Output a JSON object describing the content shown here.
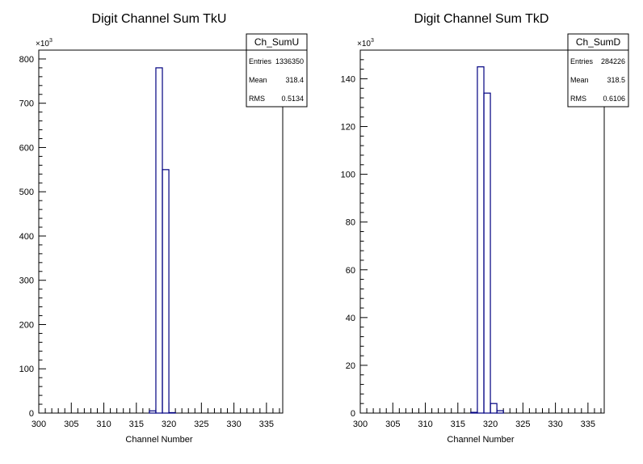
{
  "chart_data": [
    {
      "type": "histogram",
      "title": "Digit Channel Sum TkU",
      "xlabel": "Channel Number",
      "ylabel": "",
      "y_multiplier_label": "×10",
      "y_multiplier_exp": "3",
      "xlim": [
        300,
        337.5
      ],
      "ylim": [
        0,
        820
      ],
      "x_ticks": [
        300,
        305,
        310,
        315,
        320,
        325,
        330,
        335
      ],
      "y_ticks": [
        0,
        100,
        200,
        300,
        400,
        500,
        600,
        700,
        800
      ],
      "bin_width": 1,
      "bins": [
        {
          "x0": 317,
          "x1": 318,
          "y": 5
        },
        {
          "x0": 318,
          "x1": 319,
          "y": 780
        },
        {
          "x0": 319,
          "x1": 320,
          "y": 550
        },
        {
          "x0": 320,
          "x1": 321,
          "y": 1
        }
      ],
      "stats": {
        "name": "Ch_SumU",
        "rows": [
          {
            "label": "Entries",
            "value": "1336350"
          },
          {
            "label": "Mean",
            "value": "318.4"
          },
          {
            "label": "RMS",
            "value": "0.5134"
          }
        ]
      },
      "line_color": "#000080"
    },
    {
      "type": "histogram",
      "title": "Digit Channel Sum TkD",
      "xlabel": "Channel Number",
      "ylabel": "",
      "y_multiplier_label": "×10",
      "y_multiplier_exp": "3",
      "xlim": [
        300,
        337.5
      ],
      "ylim": [
        0,
        152
      ],
      "x_ticks": [
        300,
        305,
        310,
        315,
        320,
        325,
        330,
        335
      ],
      "y_ticks": [
        0,
        20,
        40,
        60,
        80,
        100,
        120,
        140
      ],
      "bin_width": 1,
      "bins": [
        {
          "x0": 317,
          "x1": 318,
          "y": 0.3
        },
        {
          "x0": 318,
          "x1": 319,
          "y": 145
        },
        {
          "x0": 319,
          "x1": 320,
          "y": 134
        },
        {
          "x0": 320,
          "x1": 321,
          "y": 4
        },
        {
          "x0": 321,
          "x1": 322,
          "y": 1
        }
      ],
      "stats": {
        "name": "Ch_SumD",
        "rows": [
          {
            "label": "Entries",
            "value": "284226"
          },
          {
            "label": "Mean",
            "value": "318.5"
          },
          {
            "label": "RMS",
            "value": "0.6106"
          }
        ]
      },
      "line_color": "#000080"
    }
  ]
}
